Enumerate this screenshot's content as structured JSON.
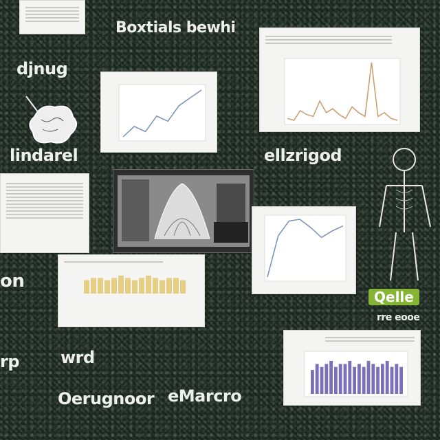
{
  "labels": {
    "top_center": "Boxtials bewhi",
    "left_upper": "djnug",
    "left_mid": "lindarel",
    "mid_right": "ellzrigod",
    "left_lower": "on",
    "bottom_left_a": "rp",
    "bottom_left_b": "wrd",
    "bottom_left_c": "Oerugnoor",
    "bottom_center": "eMarcro",
    "tag_green": "Qelle",
    "tag_sub": "rre eooe"
  },
  "charts": {
    "line_small": {
      "type": "line",
      "values": [
        10,
        18,
        14,
        26,
        22,
        34,
        40,
        46
      ]
    },
    "line_big": {
      "type": "line",
      "values": [
        12,
        10,
        20,
        16,
        14,
        30,
        18,
        22,
        16,
        12,
        24,
        18,
        14,
        70,
        14,
        18,
        12,
        10
      ]
    },
    "curve": {
      "type": "line",
      "values": [
        10,
        60,
        78,
        80,
        70,
        58,
        66,
        72
      ]
    },
    "bars_yellow": {
      "type": "bar",
      "values": [
        6,
        7,
        7,
        6,
        7,
        8,
        7,
        6,
        7,
        8,
        7,
        6,
        7,
        7,
        6
      ]
    },
    "bars_purple": {
      "type": "bar",
      "values": [
        8,
        10,
        9,
        10,
        11,
        9,
        10,
        10,
        11,
        9,
        10,
        9,
        11,
        10,
        9,
        10,
        11,
        9,
        10,
        9
      ]
    }
  },
  "colors": {
    "accent_green": "#86b536",
    "line_blue": "#7a8fb8",
    "line_orange": "#c99a6a",
    "bar_yellow": "#e4cf84",
    "bar_purple": "#7a6fb8"
  }
}
